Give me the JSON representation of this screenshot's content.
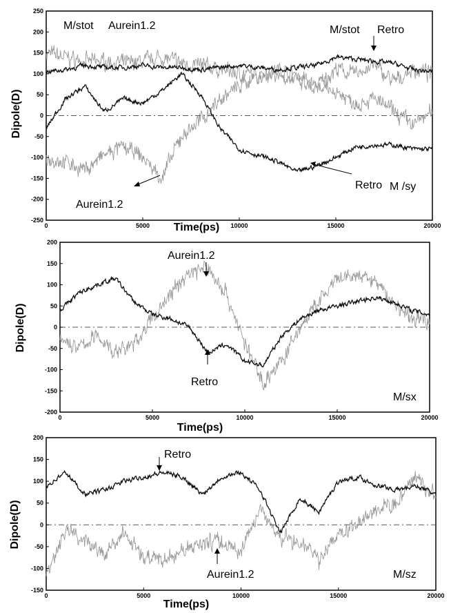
{
  "chart_data": [
    {
      "type": "line",
      "panel_label": "M /sy",
      "xlabel": "Time(ps)",
      "ylabel": "Dipole(D)",
      "xlim": [
        0,
        20000
      ],
      "ylim": [
        -250,
        250
      ],
      "x_ticks": [
        "0",
        "5000",
        "10000",
        "15000",
        "20000"
      ],
      "y_ticks": [
        "250",
        "200",
        "150",
        "100",
        "50",
        "0",
        "-50",
        "-100",
        "-150",
        "-200",
        "-250"
      ],
      "reference_line": 0,
      "series": [
        {
          "name": "M/stot Retro",
          "color": "#111111",
          "x": [
            0,
            1000,
            2000,
            3000,
            4000,
            5000,
            6000,
            7000,
            8000,
            9000,
            10000,
            11000,
            12000,
            13000,
            14000,
            15000,
            16000,
            17000,
            18000,
            19000,
            20000
          ],
          "values": [
            105,
            110,
            120,
            115,
            115,
            120,
            115,
            115,
            110,
            115,
            120,
            115,
            110,
            115,
            120,
            140,
            135,
            130,
            125,
            110,
            105
          ]
        },
        {
          "name": "M/stot Aurein1.2",
          "color": "#9a9a9a",
          "x": [
            0,
            1000,
            2000,
            3000,
            4000,
            5000,
            6000,
            7000,
            8000,
            9000,
            10000,
            11000,
            12000,
            13000,
            14000,
            15000,
            16000,
            17000,
            18000,
            19000,
            20000
          ],
          "values": [
            150,
            140,
            130,
            130,
            125,
            130,
            140,
            125,
            120,
            110,
            100,
            95,
            110,
            100,
            70,
            110,
            100,
            120,
            80,
            110,
            100
          ]
        },
        {
          "name": "M/sy Retro",
          "color": "#111111",
          "x": [
            0,
            1000,
            2000,
            3000,
            4000,
            5000,
            6000,
            7000,
            8000,
            9000,
            10000,
            11000,
            12000,
            13000,
            14000,
            15000,
            16000,
            17000,
            18000,
            19000,
            20000
          ],
          "values": [
            -30,
            40,
            70,
            10,
            40,
            30,
            60,
            100,
            50,
            -30,
            -80,
            -95,
            -110,
            -135,
            -120,
            -100,
            -75,
            -70,
            -70,
            -80,
            -80
          ]
        },
        {
          "name": "M/sy Aurein1.2",
          "color": "#9a9a9a",
          "x": [
            0,
            1000,
            2000,
            3000,
            4000,
            5000,
            6000,
            7000,
            8000,
            9000,
            10000,
            11000,
            12000,
            13000,
            14000,
            15000,
            16000,
            17000,
            18000,
            19000,
            20000
          ],
          "values": [
            -100,
            -110,
            -130,
            -95,
            -75,
            -100,
            -150,
            -50,
            -10,
            40,
            70,
            100,
            100,
            80,
            60,
            60,
            30,
            40,
            10,
            -20,
            10
          ]
        }
      ],
      "annotations": [
        "M/stot",
        "Aurein1.2",
        "M/stot",
        "Retro",
        "Aurein1.2",
        "Retro"
      ]
    },
    {
      "type": "line",
      "panel_label": "M/sx",
      "xlabel": "Time(ps)",
      "ylabel": "Dipole(D)",
      "xlim": [
        0,
        20000
      ],
      "ylim": [
        -200,
        200
      ],
      "x_ticks": [
        "0",
        "5000",
        "10000",
        "15000",
        "20000"
      ],
      "y_ticks": [
        "200",
        "150",
        "100",
        "50",
        "0",
        "-50",
        "-100",
        "-150",
        "-200"
      ],
      "reference_line": 0,
      "series": [
        {
          "name": "Retro",
          "color": "#111111",
          "x": [
            0,
            1000,
            2000,
            3000,
            4000,
            5000,
            6000,
            7000,
            8000,
            9000,
            10000,
            11000,
            12000,
            13000,
            14000,
            15000,
            16000,
            17000,
            18000,
            19000,
            20000
          ],
          "values": [
            40,
            80,
            100,
            115,
            60,
            30,
            20,
            0,
            -60,
            -40,
            -80,
            -90,
            -20,
            20,
            40,
            50,
            60,
            70,
            60,
            40,
            30
          ]
        },
        {
          "name": "Aurein1.2",
          "color": "#9a9a9a",
          "x": [
            0,
            1000,
            2000,
            3000,
            4000,
            5000,
            6000,
            7000,
            8000,
            9000,
            10000,
            11000,
            12000,
            13000,
            14000,
            15000,
            16000,
            17000,
            18000,
            19000,
            20000
          ],
          "values": [
            -30,
            -50,
            -20,
            -60,
            -40,
            20,
            80,
            130,
            140,
            80,
            -40,
            -130,
            -80,
            0,
            60,
            110,
            120,
            110,
            60,
            20,
            20
          ]
        }
      ],
      "annotations": [
        "Aurein1.2",
        "Retro"
      ]
    },
    {
      "type": "line",
      "panel_label": "M/sz",
      "xlabel": "Time(ps)",
      "ylabel": "Dipole(D)",
      "xlim": [
        0,
        20000
      ],
      "ylim": [
        -150,
        200
      ],
      "x_ticks": [
        "0",
        "5000",
        "10000",
        "15000",
        "20000"
      ],
      "y_ticks": [
        "200",
        "150",
        "100",
        "50",
        "0",
        "-50",
        "-100",
        "-150"
      ],
      "reference_line": 0,
      "series": [
        {
          "name": "Retro",
          "color": "#111111",
          "x": [
            0,
            1000,
            2000,
            3000,
            4000,
            5000,
            6000,
            7000,
            8000,
            9000,
            10000,
            11000,
            12000,
            13000,
            14000,
            15000,
            16000,
            17000,
            18000,
            19000,
            20000
          ],
          "values": [
            90,
            120,
            70,
            80,
            100,
            110,
            120,
            110,
            70,
            110,
            120,
            80,
            -20,
            60,
            30,
            100,
            110,
            90,
            80,
            90,
            70
          ]
        },
        {
          "name": "Aurein1.2",
          "color": "#9a9a9a",
          "x": [
            0,
            1000,
            2000,
            3000,
            4000,
            5000,
            6000,
            7000,
            8000,
            9000,
            10000,
            11000,
            12000,
            13000,
            14000,
            15000,
            16000,
            17000,
            18000,
            19000,
            20000
          ],
          "values": [
            -110,
            -10,
            -40,
            -70,
            -20,
            -70,
            -80,
            -60,
            -40,
            -40,
            -60,
            40,
            -30,
            -40,
            -80,
            -20,
            0,
            30,
            50,
            110,
            60
          ]
        }
      ],
      "annotations": [
        "Retro",
        "Aurein1.2"
      ]
    }
  ]
}
